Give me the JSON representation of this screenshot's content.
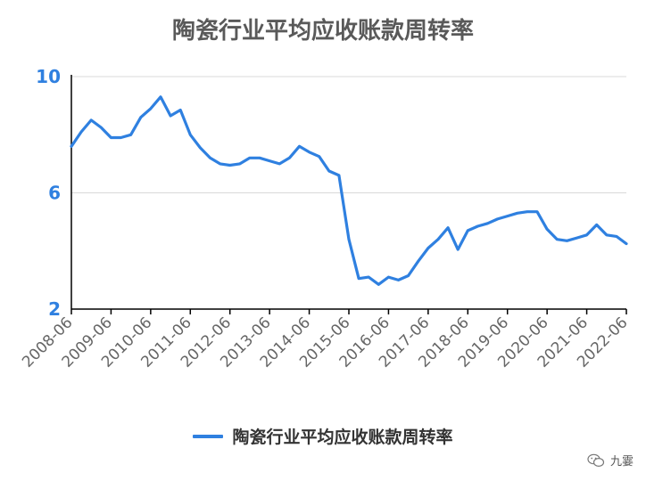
{
  "chart_data": {
    "type": "line",
    "title": "陶瓷行业平均应收账款周转率",
    "xlabel": "",
    "ylabel": "",
    "ylim": [
      2,
      10
    ],
    "yticks": [
      "2",
      "6",
      "10"
    ],
    "xticks": [
      "2008-06",
      "2009-06",
      "2010-06",
      "2011-06",
      "2012-06",
      "2013-06",
      "2014-06",
      "2015-06",
      "2016-06",
      "2017-06",
      "2018-06",
      "2019-06",
      "2020-06",
      "2021-06",
      "2022-06"
    ],
    "grid": true,
    "legend_position": "bottom",
    "series": [
      {
        "name": "陶瓷行业平均应收账款周转率",
        "color": "#2f80e0",
        "x": [
          0.0,
          0.25,
          0.5,
          0.75,
          1.0,
          1.25,
          1.5,
          1.75,
          2.0,
          2.25,
          2.5,
          2.75,
          3.0,
          3.25,
          3.5,
          3.75,
          4.0,
          4.25,
          4.5,
          4.75,
          5.0,
          5.25,
          5.5,
          5.75,
          6.0,
          6.25,
          6.5,
          6.75,
          7.0,
          7.25,
          7.5,
          7.75,
          8.0,
          8.25,
          8.5,
          8.75,
          9.0,
          9.25,
          9.5,
          9.75,
          10.0,
          10.25,
          10.5,
          10.75,
          11.0,
          11.25,
          11.5,
          11.75,
          12.0,
          12.25,
          12.5,
          12.75,
          13.0,
          13.25,
          13.5,
          13.75,
          14.0
        ],
        "values": [
          7.6,
          8.1,
          8.5,
          8.25,
          7.9,
          7.9,
          8.0,
          8.6,
          8.9,
          9.3,
          8.65,
          8.85,
          8.0,
          7.55,
          7.2,
          7.0,
          6.95,
          7.0,
          7.2,
          7.2,
          7.1,
          7.0,
          7.2,
          7.6,
          7.4,
          7.25,
          6.75,
          6.6,
          4.4,
          3.05,
          3.1,
          2.85,
          3.1,
          3.0,
          3.15,
          3.65,
          4.1,
          4.4,
          4.8,
          4.05,
          4.7,
          4.85,
          4.95,
          5.1,
          5.2,
          5.3,
          5.35,
          5.35,
          4.75,
          4.4,
          4.35,
          4.45,
          4.55,
          4.9,
          4.55,
          4.5,
          4.25
        ]
      }
    ]
  },
  "watermark": {
    "text": "九霎",
    "icon": "wechat-icon"
  }
}
